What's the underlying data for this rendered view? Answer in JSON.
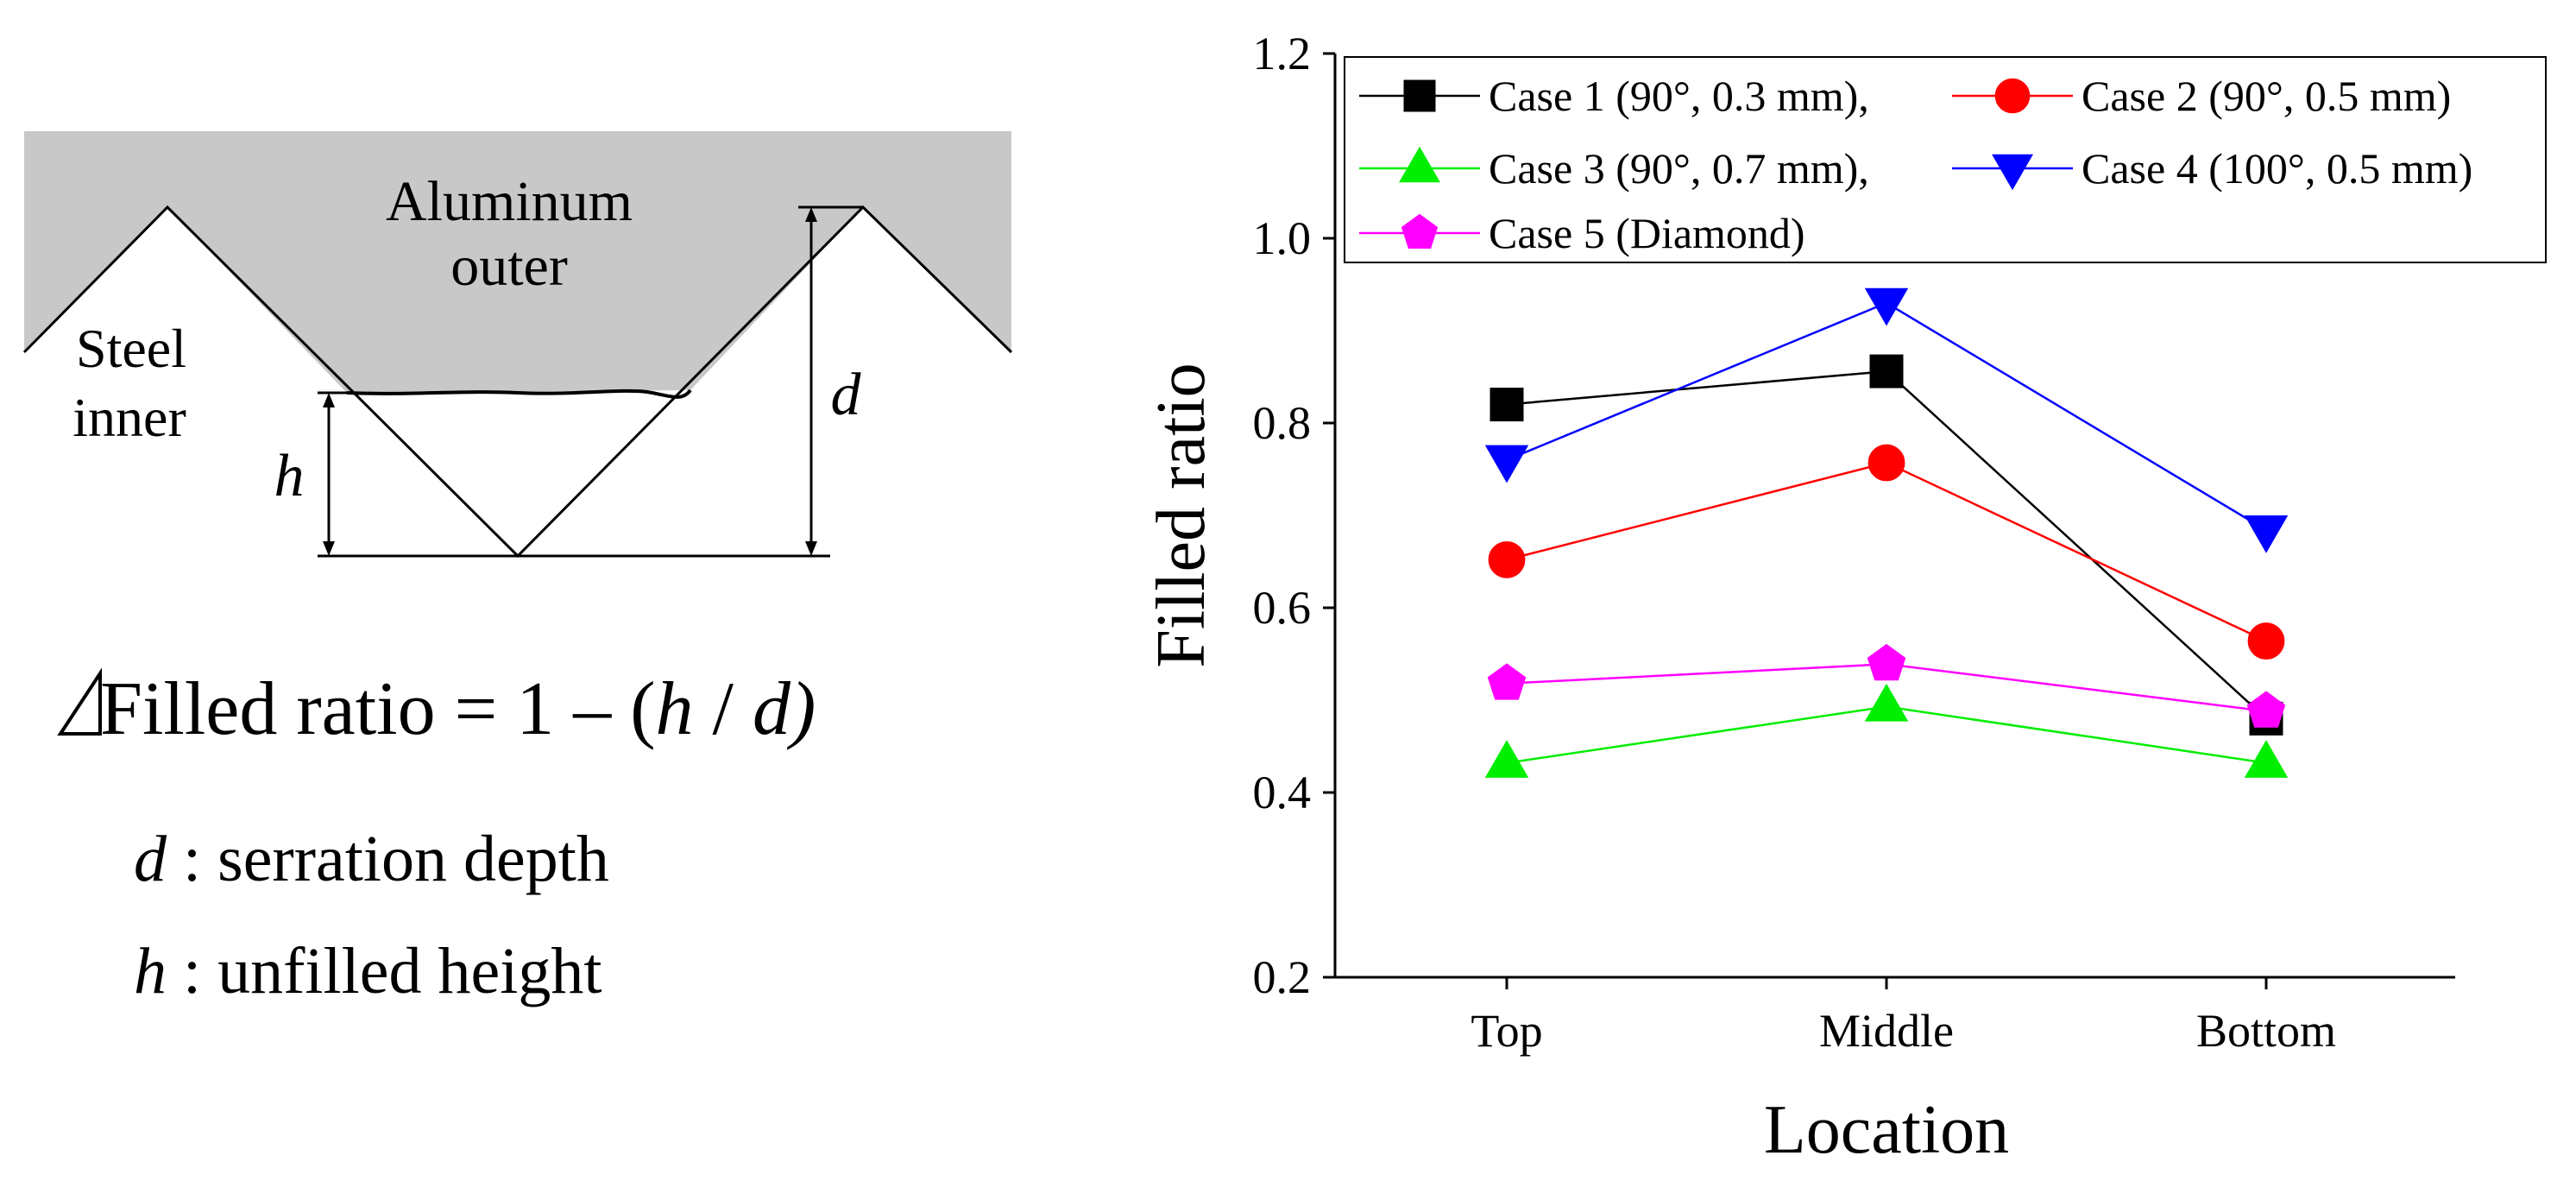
{
  "diagram": {
    "outer_label_line1": "Aluminum",
    "outer_label_line2": "outer",
    "inner_label_line1": "Steel",
    "inner_label_line2": "inner",
    "h_symbol": "h",
    "d_symbol": "d",
    "formula_prefix": "Filled ratio = 1 – (",
    "formula_h": "h",
    "formula_slash": " / ",
    "formula_d": "d",
    "formula_suffix": ")",
    "def_d_symbol": "d",
    "def_d_text": " : serration depth",
    "def_h_symbol": "h",
    "def_h_text": " : unfilled height",
    "colors": {
      "aluminum_fill": "#c8c8c8",
      "outline": "#000000"
    }
  },
  "chart_data": {
    "type": "line",
    "categories": [
      "Top",
      "Middle",
      "Bottom"
    ],
    "xlabel": "Location",
    "ylabel": "Filled ratio",
    "ylim": [
      0.2,
      1.2
    ],
    "yticks": [
      0.2,
      0.4,
      0.6,
      0.8,
      1.0,
      1.2
    ],
    "ytick_labels": [
      "0.2",
      "0.4",
      "0.6",
      "0.8",
      "1.0",
      "1.2"
    ],
    "grid": false,
    "legend_position": "top",
    "series": [
      {
        "name": "Case 1 (90°, 0.3 mm),",
        "color": "#000000",
        "marker": "square",
        "values": [
          0.82,
          0.856,
          0.48
        ]
      },
      {
        "name": "Case 2 (90°, 0.5 mm)",
        "color": "#ff0000",
        "marker": "circle",
        "values": [
          0.652,
          0.757,
          0.564
        ]
      },
      {
        "name": "Case 3 (90°, 0.7 mm),",
        "color": "#00ee00",
        "marker": "triangle-up",
        "values": [
          0.432,
          0.493,
          0.432
        ]
      },
      {
        "name": "Case 4 (100°, 0.5 mm)",
        "color": "#0000ff",
        "marker": "triangle-down",
        "values": [
          0.76,
          0.93,
          0.684
        ]
      },
      {
        "name": "Case 5 (Diamond)",
        "color": "#ff00ff",
        "marker": "pentagon",
        "values": [
          0.518,
          0.539,
          0.488
        ]
      }
    ]
  }
}
